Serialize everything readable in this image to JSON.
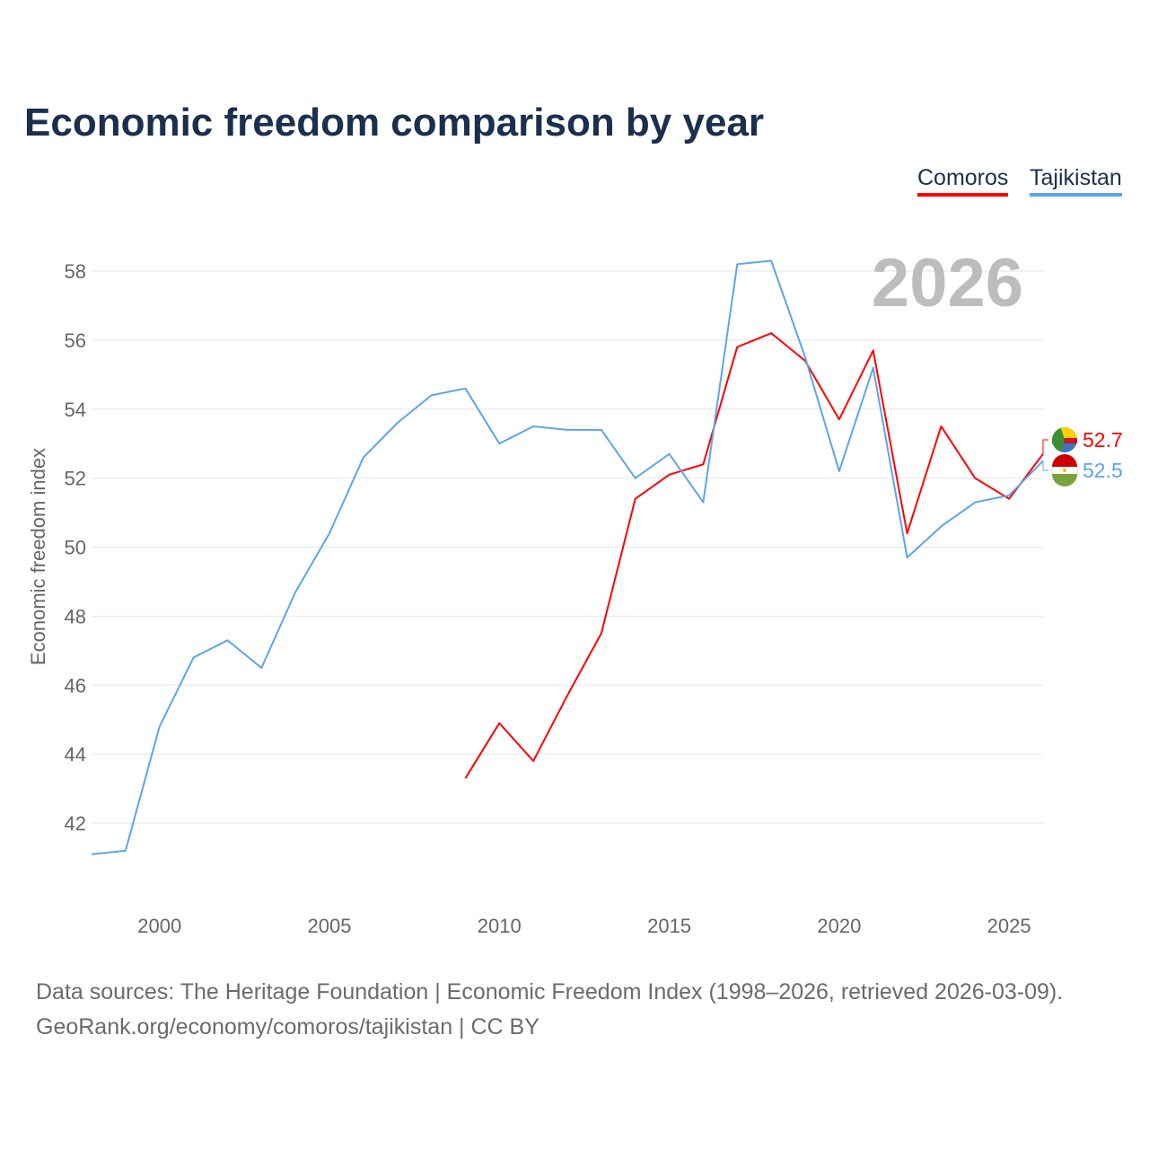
{
  "title": "Economic freedom comparison by year",
  "footer": {
    "line1": "Data sources: The Heritage Foundation | Economic Freedom Index (1998–2026, retrieved 2026-03-09).",
    "line2": "GeoRank.org/economy/comoros/tajikistan | CC BY"
  },
  "chart_data": {
    "type": "line",
    "title": "Economic freedom comparison by year",
    "xlabel": "",
    "ylabel": "Economic freedom index",
    "watermark": "2026",
    "xlim": [
      1998,
      2026
    ],
    "ylim": [
      40,
      59.5
    ],
    "xticks": [
      2000,
      2005,
      2010,
      2015,
      2020,
      2025
    ],
    "yticks": [
      42,
      44,
      46,
      48,
      50,
      52,
      54,
      56,
      58
    ],
    "grid": true,
    "legend": "top-right",
    "series": [
      {
        "name": "Comoros",
        "color": "#ff0000",
        "end_label": "52.7",
        "x": [
          2009,
          2010,
          2011,
          2012,
          2013,
          2014,
          2015,
          2016,
          2017,
          2018,
          2019,
          2020,
          2021,
          2022,
          2023,
          2024,
          2025,
          2026
        ],
        "values": [
          43.3,
          44.9,
          43.8,
          45.7,
          47.5,
          51.4,
          52.1,
          52.4,
          55.8,
          56.2,
          55.4,
          53.7,
          55.7,
          50.4,
          53.5,
          52.0,
          51.4,
          52.7
        ]
      },
      {
        "name": "Tajikistan",
        "color": "#5da5ea",
        "end_label": "52.5",
        "x": [
          1998,
          1999,
          2000,
          2001,
          2002,
          2003,
          2004,
          2005,
          2006,
          2007,
          2008,
          2009,
          2010,
          2011,
          2012,
          2013,
          2014,
          2015,
          2016,
          2017,
          2018,
          2019,
          2020,
          2021,
          2022,
          2023,
          2024,
          2025,
          2026
        ],
        "values": [
          41.1,
          41.2,
          44.8,
          46.8,
          47.3,
          46.5,
          48.7,
          50.4,
          52.6,
          53.6,
          54.4,
          54.6,
          53.0,
          53.5,
          53.4,
          53.4,
          52.0,
          52.7,
          51.3,
          58.2,
          58.3,
          55.5,
          52.2,
          55.2,
          49.7,
          50.6,
          51.3,
          51.5,
          52.5
        ]
      }
    ]
  }
}
